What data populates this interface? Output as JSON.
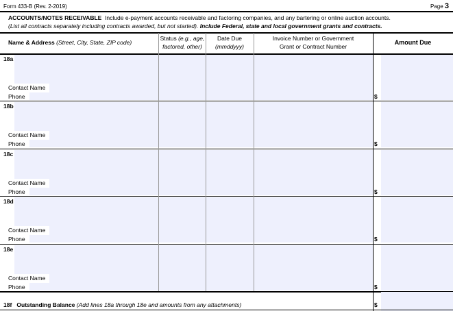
{
  "form_id": "Form 433-B (Rev. 2-2019)",
  "page_label": "Page",
  "page_number": "3",
  "section": {
    "title": "ACCOUNTS/NOTES RECEIVABLE",
    "intro": "Include e-payment accounts receivable and factoring companies, and any bartering or online auction accounts.",
    "note_italic": "(List all contracts separately including contracts awarded, but not started).",
    "note_bold": "Include Federal, state and local government grants and contracts."
  },
  "columns": {
    "name_bold": "Name & Address",
    "name_italic": "(Street, City, State, ZIP code)",
    "status_1": "Status",
    "status_1i": "(e.g., age,",
    "status_2i": "factored, other)",
    "date_1": "Date Due",
    "date_2i": "(mmddyyy)",
    "invoice_1": "Invoice Number or Government",
    "invoice_2": "Grant or Contract Number",
    "amount": "Amount Due"
  },
  "rows": [
    {
      "line": "18a",
      "contact_label": "Contact Name",
      "phone_label": "Phone",
      "currency": "$"
    },
    {
      "line": "18b",
      "contact_label": "Contact Name",
      "phone_label": "Phone",
      "currency": "$"
    },
    {
      "line": "18c",
      "contact_label": "Contact Name",
      "phone_label": "Phone",
      "currency": "$"
    },
    {
      "line": "18d",
      "contact_label": "Contact Name",
      "phone_label": "Phone",
      "currency": "$"
    },
    {
      "line": "18e",
      "contact_label": "Contact Name",
      "phone_label": "Phone",
      "currency": "$"
    }
  ],
  "total": {
    "line": "18f",
    "label": "Outstanding Balance",
    "note": "(Add lines 18a through 18e and amounts from any attachments)",
    "currency": "$"
  },
  "colors": {
    "field_fill": "#eef0fd"
  }
}
